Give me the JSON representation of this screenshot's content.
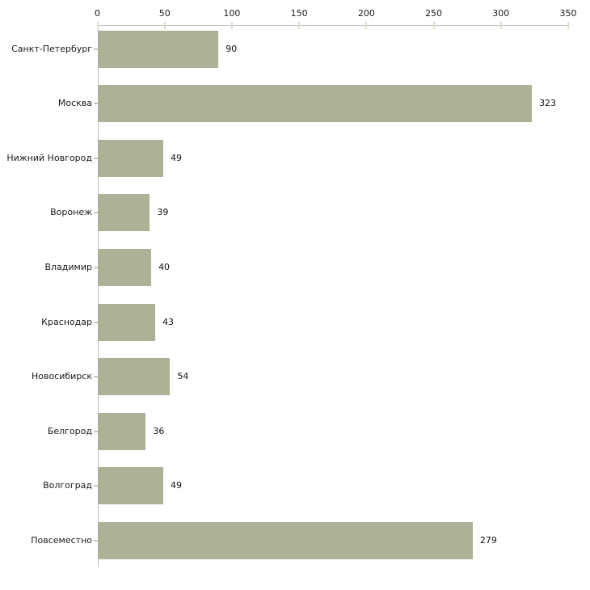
{
  "chart_data": {
    "type": "bar",
    "orientation": "horizontal",
    "title": "",
    "xlabel": "",
    "ylabel": "",
    "categories": [
      "Санкт-Петербург",
      "Москва",
      "Нижний Новгород",
      "Воронеж",
      "Владимир",
      "Краснодар",
      "Новосибирск",
      "Белгород",
      "Волгоград",
      "Повсеместно"
    ],
    "values": [
      90,
      323,
      49,
      39,
      40,
      43,
      54,
      36,
      49,
      279
    ],
    "value_labels": [
      "90",
      "323",
      "49",
      "39",
      "40",
      "43",
      "54",
      "36",
      "49",
      "279"
    ],
    "x_ticks": [
      0,
      50,
      100,
      150,
      200,
      250,
      300,
      350
    ],
    "x_tick_labels": [
      "0",
      "50",
      "100",
      "150",
      "200",
      "250",
      "300",
      "350"
    ],
    "xlim": [
      0,
      350
    ],
    "grid": false,
    "legend": null,
    "axis_position": "top",
    "colors": {
      "bar_fill": "#abb296",
      "axis_line": "#c2c2c2",
      "x_tick_mark": "#dcdfc8",
      "y_tick_mark": "#c6cab4",
      "text": "#1a1a1a"
    }
  }
}
